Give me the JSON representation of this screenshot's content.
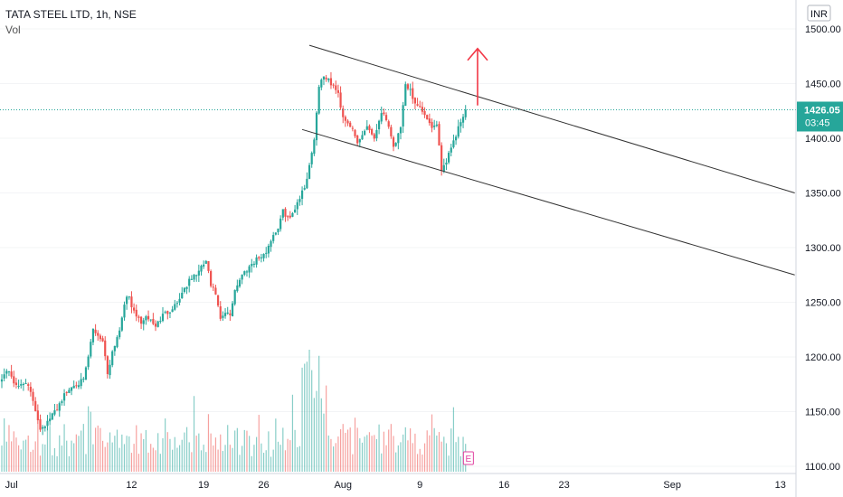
{
  "legend": {
    "symbol": "TATA STEEL LTD, 1h, NSE",
    "volume": "Vol"
  },
  "currency": "INR",
  "price_badge": {
    "price": "1426.05",
    "countdown": "03:45",
    "color": "#26a69a"
  },
  "event_marker": "E",
  "colors": {
    "up": "#26a69a",
    "down": "#ef5350",
    "line": "#333333",
    "arrow": "#f23645",
    "price_line": "#26a69a"
  },
  "chart_data": {
    "type": "candlestick",
    "ylim": [
      1100,
      1500
    ],
    "y_ticks": [
      1100,
      1150,
      1200,
      1250,
      1300,
      1350,
      1400,
      1450,
      1500
    ],
    "y_tick_labels": [
      "1100.00",
      "1150.00",
      "1200.00",
      "1250.00",
      "1300.00",
      "1350.00",
      "1400.00",
      "1450.00",
      "1500.00"
    ],
    "x_ticks": [
      {
        "label": "Jul",
        "bar": 4
      },
      {
        "label": "12",
        "bar": 54
      },
      {
        "label": "19",
        "bar": 84
      },
      {
        "label": "26",
        "bar": 109
      },
      {
        "label": "Aug",
        "bar": 142
      },
      {
        "label": "9",
        "bar": 174
      },
      {
        "label": "16",
        "bar": 209
      },
      {
        "label": "23",
        "bar": 234
      },
      {
        "label": "Sep",
        "bar": 279
      },
      {
        "label": "13",
        "bar": 324
      }
    ],
    "bar_count": 330,
    "last_price": 1426.05,
    "anchors": [
      [
        0,
        1182
      ],
      [
        3,
        1188
      ],
      [
        6,
        1172
      ],
      [
        10,
        1178
      ],
      [
        13,
        1160
      ],
      [
        16,
        1135
      ],
      [
        19,
        1140
      ],
      [
        22,
        1150
      ],
      [
        26,
        1165
      ],
      [
        30,
        1175
      ],
      [
        34,
        1178
      ],
      [
        36,
        1200
      ],
      [
        38,
        1225
      ],
      [
        42,
        1215
      ],
      [
        44,
        1185
      ],
      [
        46,
        1205
      ],
      [
        49,
        1225
      ],
      [
        51,
        1250
      ],
      [
        53,
        1255
      ],
      [
        55,
        1240
      ],
      [
        58,
        1232
      ],
      [
        61,
        1236
      ],
      [
        64,
        1228
      ],
      [
        67,
        1238
      ],
      [
        70,
        1243
      ],
      [
        73,
        1250
      ],
      [
        76,
        1263
      ],
      [
        79,
        1272
      ],
      [
        82,
        1278
      ],
      [
        85,
        1288
      ],
      [
        87,
        1265
      ],
      [
        89,
        1258
      ],
      [
        91,
        1233
      ],
      [
        93,
        1240
      ],
      [
        95,
        1238
      ],
      [
        97,
        1262
      ],
      [
        100,
        1275
      ],
      [
        103,
        1283
      ],
      [
        106,
        1290
      ],
      [
        109,
        1292
      ],
      [
        111,
        1302
      ],
      [
        113,
        1312
      ],
      [
        115,
        1318
      ],
      [
        117,
        1333
      ],
      [
        120,
        1326
      ],
      [
        123,
        1342
      ],
      [
        126,
        1355
      ],
      [
        128,
        1375
      ],
      [
        130,
        1400
      ],
      [
        132,
        1448
      ],
      [
        134,
        1458
      ],
      [
        136,
        1452
      ],
      [
        138,
        1448
      ],
      [
        140,
        1440
      ],
      [
        142,
        1420
      ],
      [
        145,
        1412
      ],
      [
        148,
        1395
      ],
      [
        150,
        1403
      ],
      [
        152,
        1412
      ],
      [
        155,
        1400
      ],
      [
        158,
        1425
      ],
      [
        161,
        1413
      ],
      [
        163,
        1392
      ],
      [
        166,
        1408
      ],
      [
        168,
        1448
      ],
      [
        170,
        1445
      ],
      [
        172,
        1430
      ],
      [
        175,
        1425
      ],
      [
        178,
        1412
      ],
      [
        181,
        1410
      ],
      [
        183,
        1372
      ],
      [
        185,
        1380
      ],
      [
        187,
        1393
      ],
      [
        189,
        1403
      ],
      [
        191,
        1416
      ],
      [
        193,
        1426.05
      ]
    ],
    "volume": {
      "ylim": [
        0,
        100000
      ]
    },
    "channel": {
      "upper": [
        [
          128,
          1485
        ],
        [
          330,
          1350
        ]
      ],
      "lower": [
        [
          125,
          1408
        ],
        [
          330,
          1275
        ]
      ]
    },
    "annotation_arrow": {
      "bar": 198,
      "from": 1430,
      "to": 1482
    }
  }
}
